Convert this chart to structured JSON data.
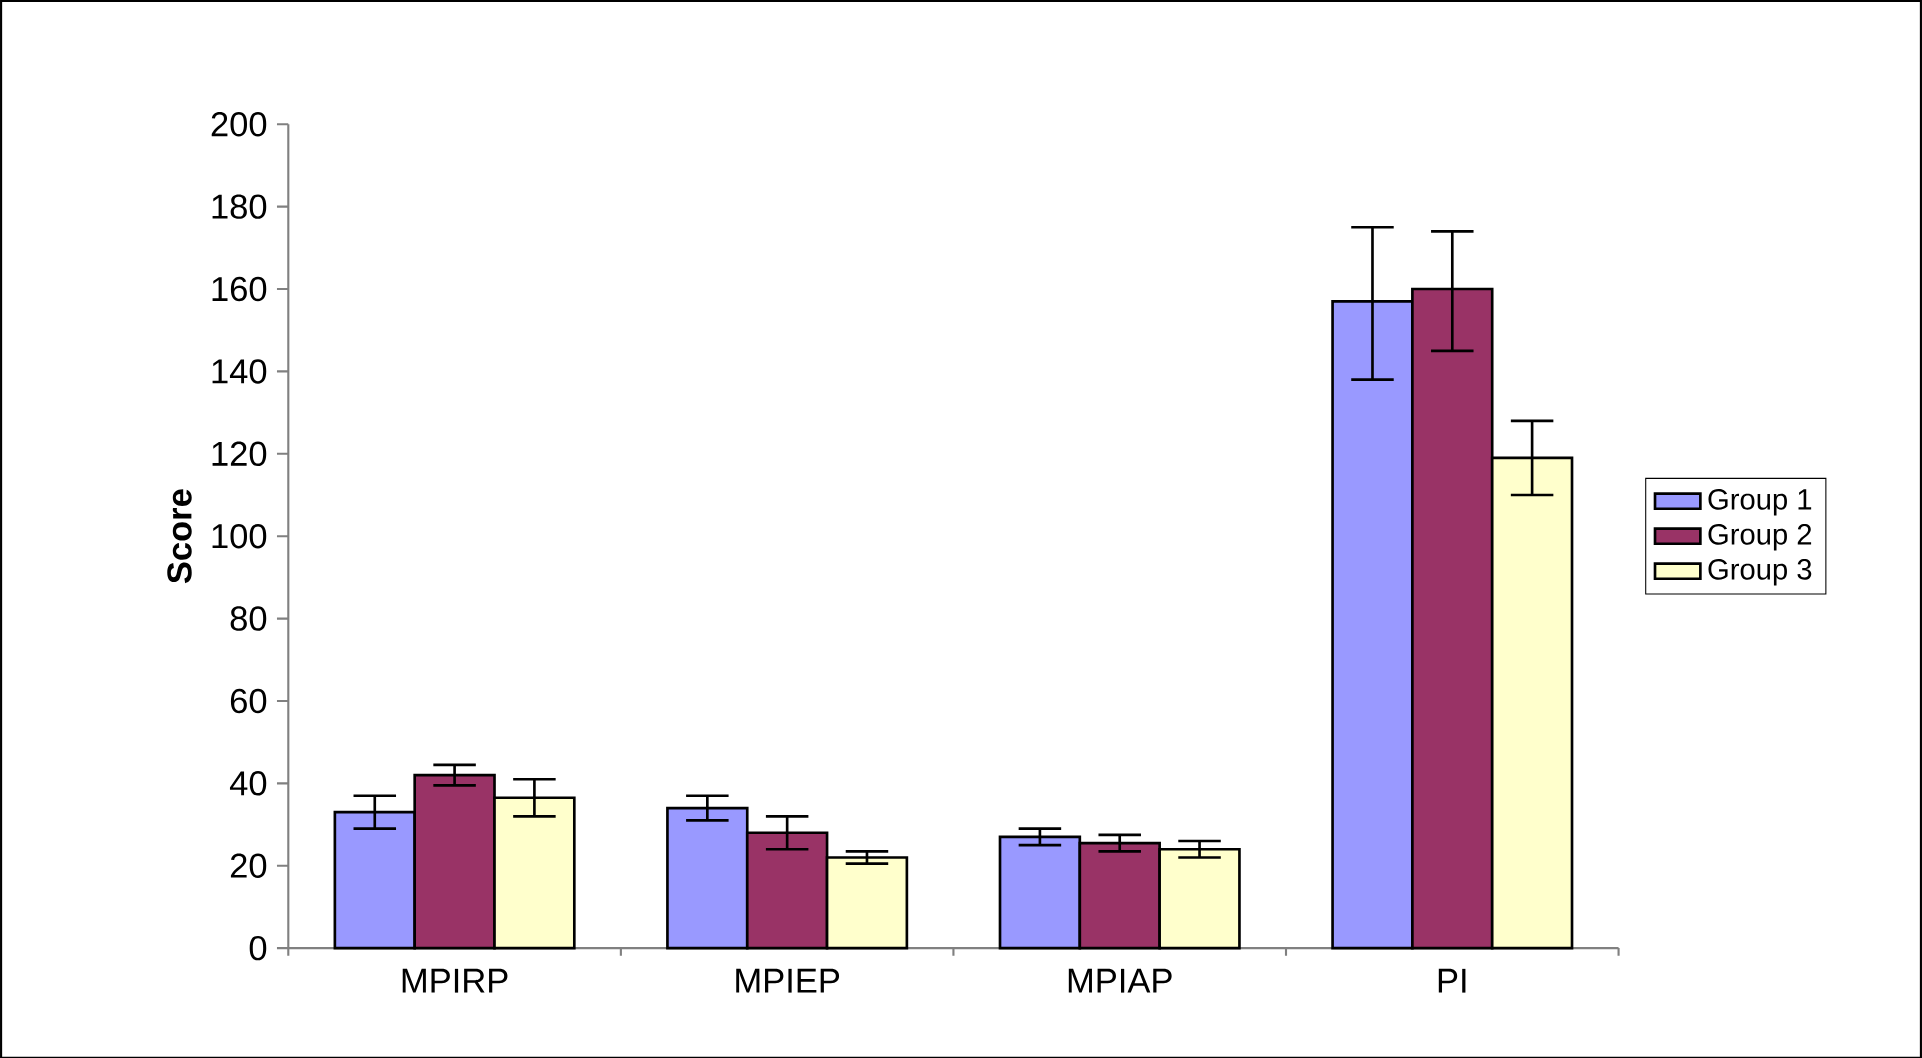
{
  "chart_data": {
    "type": "bar",
    "ylabel": "Score",
    "categories": [
      "MPIRP",
      "MPIEP",
      "MPIAP",
      "PI"
    ],
    "series": [
      {
        "name": "Group 1",
        "color": "#9999ff",
        "values": [
          33,
          34,
          27,
          157
        ],
        "errors": [
          4,
          3,
          2,
          [
            138,
            175
          ]
        ]
      },
      {
        "name": "Group 2",
        "color": "#993366",
        "values": [
          42,
          28,
          25.5,
          160
        ],
        "errors": [
          2.5,
          4,
          2,
          [
            145,
            174
          ]
        ]
      },
      {
        "name": "Group 3",
        "color": "#ffffcc",
        "values": [
          36.5,
          22,
          24,
          119
        ],
        "errors": [
          4.5,
          1.5,
          2,
          [
            110,
            128
          ]
        ]
      }
    ],
    "ylim": [
      0,
      200
    ],
    "yticks": [
      0,
      20,
      40,
      60,
      80,
      100,
      120,
      140,
      160,
      180,
      200
    ],
    "legend": "right"
  }
}
